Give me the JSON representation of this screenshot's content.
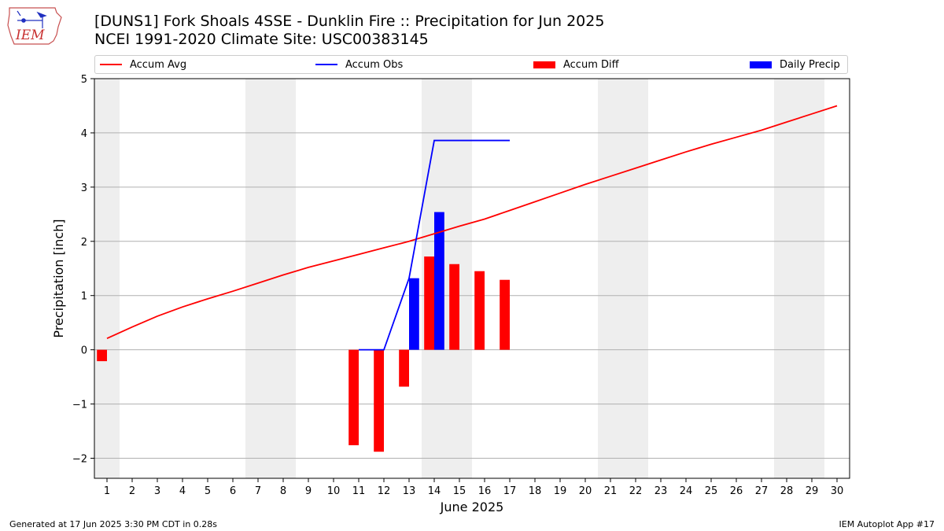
{
  "header": {
    "title_line1": "[DUNS1] Fork Shoals 4SSE - Dunklin Fire :: Precipitation for Jun 2025",
    "title_line2": "NCEI 1991-2020 Climate Site: USC00383145"
  },
  "logo": {
    "text": "IEM",
    "icon": "iem-iowa-logo-icon"
  },
  "footer": {
    "left": "Generated at 17 Jun 2025 3:30 PM CDT in 0.28s",
    "right": "IEM Autoplot App #17"
  },
  "colors": {
    "accum_avg": "#ff0000",
    "accum_obs": "#0000ff",
    "accum_diff": "#ff0000",
    "daily_precip": "#0000ff",
    "weekend_shading": "#eeeeee",
    "grid": "#b0b0b0"
  },
  "chart_data": {
    "type": "bar",
    "xlabel": "June 2025",
    "ylabel": "Precipitation [inch]",
    "xlim": [
      0.5,
      30.5
    ],
    "ylim": [
      -2.37,
      5.0
    ],
    "x_ticks": [
      1,
      2,
      3,
      4,
      5,
      6,
      7,
      8,
      9,
      10,
      11,
      12,
      13,
      14,
      15,
      16,
      17,
      18,
      19,
      20,
      21,
      22,
      23,
      24,
      25,
      26,
      27,
      28,
      29,
      30
    ],
    "x_tick_labels": [
      "1",
      "2",
      "3",
      "4",
      "5",
      "6",
      "7",
      "8",
      "9",
      "10",
      "11",
      "12",
      "13",
      "14",
      "15",
      "16",
      "17",
      "18",
      "19",
      "20",
      "21",
      "22",
      "23",
      "24",
      "25",
      "26",
      "27",
      "28",
      "29",
      "30"
    ],
    "y_ticks": [
      -2,
      -1,
      0,
      1,
      2,
      3,
      4,
      5
    ],
    "y_tick_labels": [
      "−2",
      "−1",
      "0",
      "1",
      "2",
      "3",
      "4",
      "5"
    ],
    "grid": "horizontal",
    "legend_position": "top",
    "weekend_days": [
      1,
      7,
      8,
      14,
      15,
      21,
      22,
      28,
      29
    ],
    "series": [
      {
        "name": "Accum Avg",
        "kind": "line",
        "x": [
          1,
          2,
          3,
          4,
          5,
          6,
          7,
          8,
          9,
          10,
          11,
          12,
          13,
          14,
          15,
          16,
          17,
          18,
          19,
          20,
          21,
          22,
          23,
          24,
          25,
          26,
          27,
          28,
          29,
          30
        ],
        "values": [
          0.21,
          0.42,
          0.62,
          0.79,
          0.94,
          1.08,
          1.23,
          1.38,
          1.52,
          1.64,
          1.76,
          1.88,
          2.0,
          2.14,
          2.28,
          2.41,
          2.57,
          2.73,
          2.89,
          3.05,
          3.2,
          3.35,
          3.5,
          3.65,
          3.79,
          3.92,
          4.05,
          4.2,
          4.35,
          4.5
        ]
      },
      {
        "name": "Accum Obs",
        "kind": "line",
        "x": [
          11,
          12,
          13,
          14,
          15,
          16,
          17
        ],
        "values": [
          0.0,
          0.0,
          1.32,
          3.86,
          3.86,
          3.86,
          3.86
        ]
      },
      {
        "name": "Accum Diff",
        "kind": "bar",
        "x": [
          1,
          11,
          12,
          13,
          14,
          15,
          16,
          17
        ],
        "values": [
          -0.21,
          -1.76,
          -1.88,
          -0.68,
          1.72,
          1.58,
          1.45,
          1.29
        ]
      },
      {
        "name": "Daily Precip",
        "kind": "bar",
        "x": [
          13,
          14
        ],
        "values": [
          1.32,
          2.54
        ]
      }
    ]
  }
}
